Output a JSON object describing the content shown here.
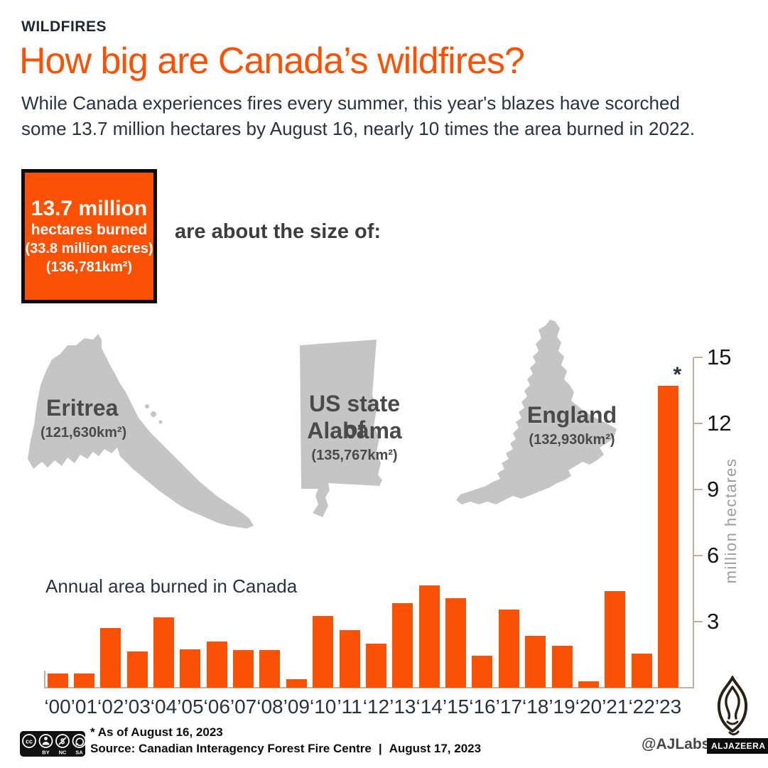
{
  "colors": {
    "accent": "#FB5104",
    "ink": "#28333F",
    "map_gray": "#C5C5C5",
    "map_label": "#4A4A4A",
    "axis": "#C2AF9F",
    "ylabel_gray": "#9C9C9C"
  },
  "header": {
    "kicker": "WILDFIRES",
    "title": "How big are Canada’s wildfires?",
    "subtitle_lines": [
      "While Canada experiences fires every summer, this year's blazes have scorched",
      "some 13.7 million hectares by August 16, nearly 10 times the area burned in 2022."
    ]
  },
  "stat_box": {
    "value": "13.7 million",
    "unit": "hectares burned",
    "acres": "(33.8 million acres)",
    "km2": "(136,781km²)"
  },
  "comparison": {
    "lead": "are about the size of:",
    "regions": [
      {
        "lines": [
          "Eritrea"
        ],
        "area": "(121,630km²)"
      },
      {
        "lines": [
          "US state of",
          "Alabama"
        ],
        "area": "(135,767km²)"
      },
      {
        "lines": [
          "England"
        ],
        "area": "(132,930km²)"
      }
    ]
  },
  "chart_data": {
    "type": "bar",
    "title": "Annual area burned in Canada",
    "xlabel": "",
    "ylabel": "million hectares",
    "ylim": [
      0,
      15
    ],
    "yticks": [
      3,
      6,
      9,
      12,
      15
    ],
    "grid": false,
    "bar_color": "#FB5104",
    "categories": [
      "‘00",
      "’01",
      "‘02",
      "’03",
      "‘04",
      "’05",
      "‘06",
      "’07",
      "‘08",
      "’09",
      "‘10",
      "’11",
      "‘12",
      "’13",
      "‘14",
      "’15",
      "‘16",
      "’17",
      "‘18",
      "’19",
      "‘20",
      "’21",
      "‘22",
      "’23"
    ],
    "values": [
      0.65,
      0.65,
      2.7,
      1.65,
      3.2,
      1.75,
      2.1,
      1.7,
      1.7,
      0.4,
      3.25,
      2.6,
      2.0,
      3.85,
      4.65,
      4.05,
      1.45,
      3.55,
      2.35,
      1.9,
      0.3,
      4.4,
      1.55,
      13.7
    ],
    "annotation": {
      "text": "*",
      "category": "’23",
      "meaning": "As of August 16, 2023"
    }
  },
  "footer": {
    "license": {
      "name": "cc",
      "labels": [
        "BY",
        "NC",
        "SA"
      ]
    },
    "footnote": "* As of August 16, 2023",
    "source": "Source: Canadian Interagency Forest Fire Centre",
    "divider": "|",
    "date": "August 17, 2023",
    "credit": "@AJLabs",
    "brand": "ALJAZEERA"
  }
}
